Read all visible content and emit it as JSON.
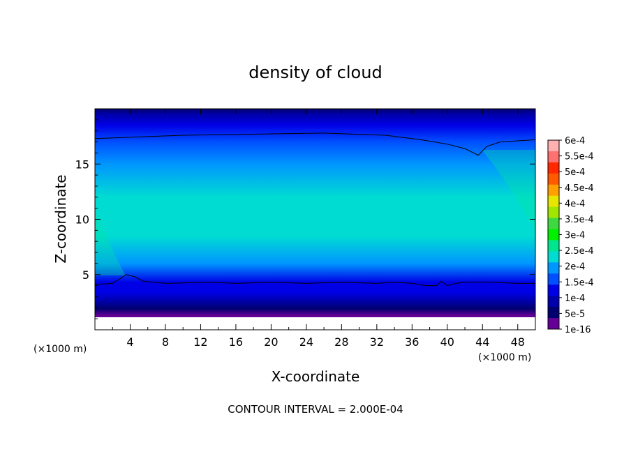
{
  "chart_data": {
    "type": "heatmap",
    "title": "density of cloud",
    "xlabel": "X-coordinate",
    "ylabel": "Z-coordinate",
    "x_unit": "(×1000 m)",
    "y_unit": "(×1000 m)",
    "xlim": [
      0,
      50
    ],
    "ylim": [
      0,
      20
    ],
    "x_ticks": [
      4,
      8,
      12,
      16,
      20,
      24,
      28,
      32,
      36,
      40,
      44,
      48
    ],
    "y_ticks": [
      5,
      10,
      15
    ],
    "footnote": "CONTOUR INTERVAL = 2.000E-04",
    "colorbar": {
      "labels": [
        "6e-4",
        "5.5e-4",
        "5e-4",
        "4.5e-4",
        "4e-4",
        "3.5e-4",
        "3e-4",
        "2.5e-4",
        "2e-4",
        "1.5e-4",
        "1e-4",
        "5e-5",
        "1e-16"
      ],
      "colors": [
        "#ffb0b0",
        "#ff7070",
        "#ff2800",
        "#ff5a00",
        "#ffa000",
        "#e6e600",
        "#a0e600",
        "#40d840",
        "#00f000",
        "#00e690",
        "#00dcd2",
        "#0096ff",
        "#0050ff",
        "#0000e6",
        "#0000aa",
        "#00006e",
        "#640096"
      ]
    },
    "vertical_profile": [
      {
        "z": 1.3,
        "value": 1e-16
      },
      {
        "z": 1.9,
        "value": 5e-05
      },
      {
        "z": 2.6,
        "value": 0.0001
      },
      {
        "z": 3.4,
        "value": 0.00013
      },
      {
        "z": 4.3,
        "value": 0.00017
      },
      {
        "z": 6.0,
        "value": 0.00023
      },
      {
        "z": 8.5,
        "value": 0.00028
      },
      {
        "z": 10.0,
        "value": 0.0003
      },
      {
        "z": 12.0,
        "value": 0.00028
      },
      {
        "z": 15.0,
        "value": 0.00024
      },
      {
        "z": 17.0,
        "value": 0.000205
      },
      {
        "z": 18.5,
        "value": 0.00015
      },
      {
        "z": 19.5,
        "value": 0.0001
      },
      {
        "z": 20.0,
        "value": 5e-05
      }
    ],
    "contour_2e-4_upper": [
      [
        0,
        17.3
      ],
      [
        10,
        17.6
      ],
      [
        26,
        17.8
      ],
      [
        33,
        17.6
      ],
      [
        37,
        17.2
      ],
      [
        40,
        16.8
      ],
      [
        42,
        16.4
      ],
      [
        43.5,
        15.8
      ],
      [
        44.5,
        16.6
      ],
      [
        46,
        17.0
      ],
      [
        50,
        17.2
      ]
    ],
    "contour_2e-4_lower": [
      [
        0,
        4.1
      ],
      [
        2,
        4.2
      ],
      [
        3,
        4.7
      ],
      [
        3.5,
        5.0
      ],
      [
        4.5,
        4.8
      ],
      [
        5.5,
        4.4
      ],
      [
        8,
        4.2
      ],
      [
        13,
        4.3
      ],
      [
        16,
        4.2
      ],
      [
        20,
        4.3
      ],
      [
        24,
        4.2
      ],
      [
        28,
        4.3
      ],
      [
        32,
        4.2
      ],
      [
        34,
        4.3
      ],
      [
        36,
        4.2
      ],
      [
        37.5,
        4.0
      ],
      [
        38.8,
        4.0
      ],
      [
        39.3,
        4.4
      ],
      [
        40,
        4.0
      ],
      [
        41,
        4.2
      ],
      [
        42,
        4.3
      ],
      [
        45,
        4.3
      ],
      [
        48,
        4.2
      ],
      [
        50,
        4.2
      ]
    ]
  }
}
